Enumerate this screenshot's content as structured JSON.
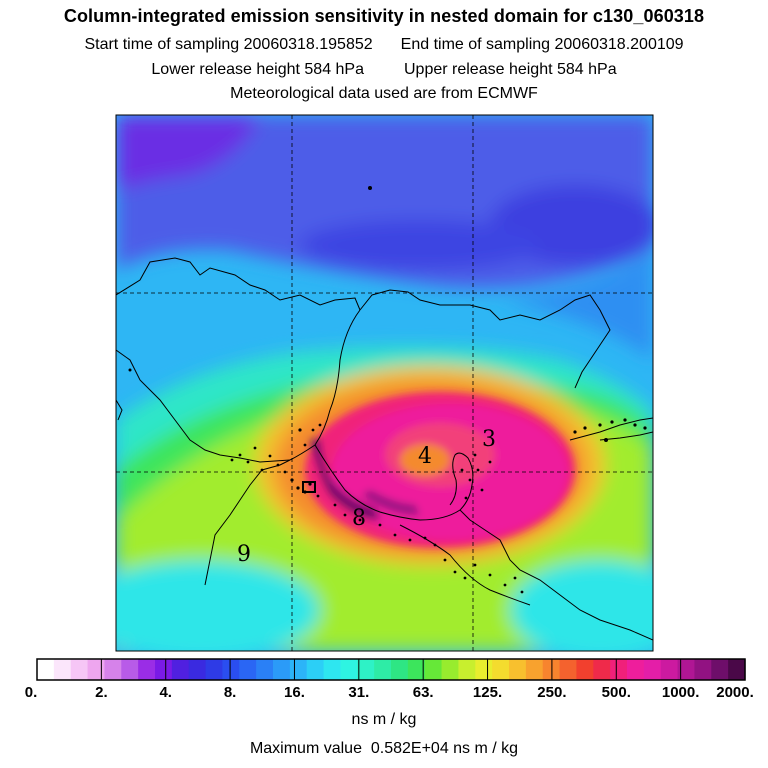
{
  "header": {
    "title": "Column-integrated emission sensitivity in nested domain for c130_060318",
    "start_label": "Start time of sampling 20060318.195852",
    "end_label": "End time of sampling 20060318.200109",
    "lower_label": "Lower release height  584 hPa",
    "upper_label": "Upper release height  584 hPa",
    "met_label": "Meteorological data used are from ECMWF"
  },
  "map": {
    "field": "emission sensitivity",
    "contour_labels": [
      "4",
      "3",
      "8",
      "9"
    ],
    "gridlines": "dashed",
    "colors": {
      "ocean_bg": "#29b7f3",
      "land_outline": "#000000"
    }
  },
  "colorbar": {
    "tick_labels": [
      "0.",
      "2.",
      "4.",
      "8.",
      "16.",
      "31.",
      "63.",
      "125.",
      "250.",
      "500.",
      "1000.",
      "2000."
    ],
    "units": "ns m / kg",
    "colors": [
      "#ffffff",
      "#fbe6fb",
      "#f6c6f6",
      "#eea6ef",
      "#d682ea",
      "#b85be8",
      "#9a2de6",
      "#7a1ae6",
      "#5020e0",
      "#3a2ae0",
      "#2e3be6",
      "#2a4ef0",
      "#2a66f4",
      "#2a80f6",
      "#2b9bf8",
      "#2cb4f8",
      "#2ccff6",
      "#2ee6f0",
      "#2ef4e2",
      "#2ef2c6",
      "#2eeca6",
      "#2ee684",
      "#3ce55c",
      "#66e838",
      "#98ec2e",
      "#c8ef2e",
      "#e8ee2e",
      "#f4dc2e",
      "#f8c02e",
      "#f8a22e",
      "#f7842e",
      "#f4622e",
      "#f2402e",
      "#ef2a4a",
      "#f0207a",
      "#ee1e9c",
      "#e41ea8",
      "#cc1aa0",
      "#b01694",
      "#921282",
      "#6e0e6a",
      "#4a0848"
    ]
  },
  "max_value_text": "Maximum value  0.582E+04 ns m / kg"
}
